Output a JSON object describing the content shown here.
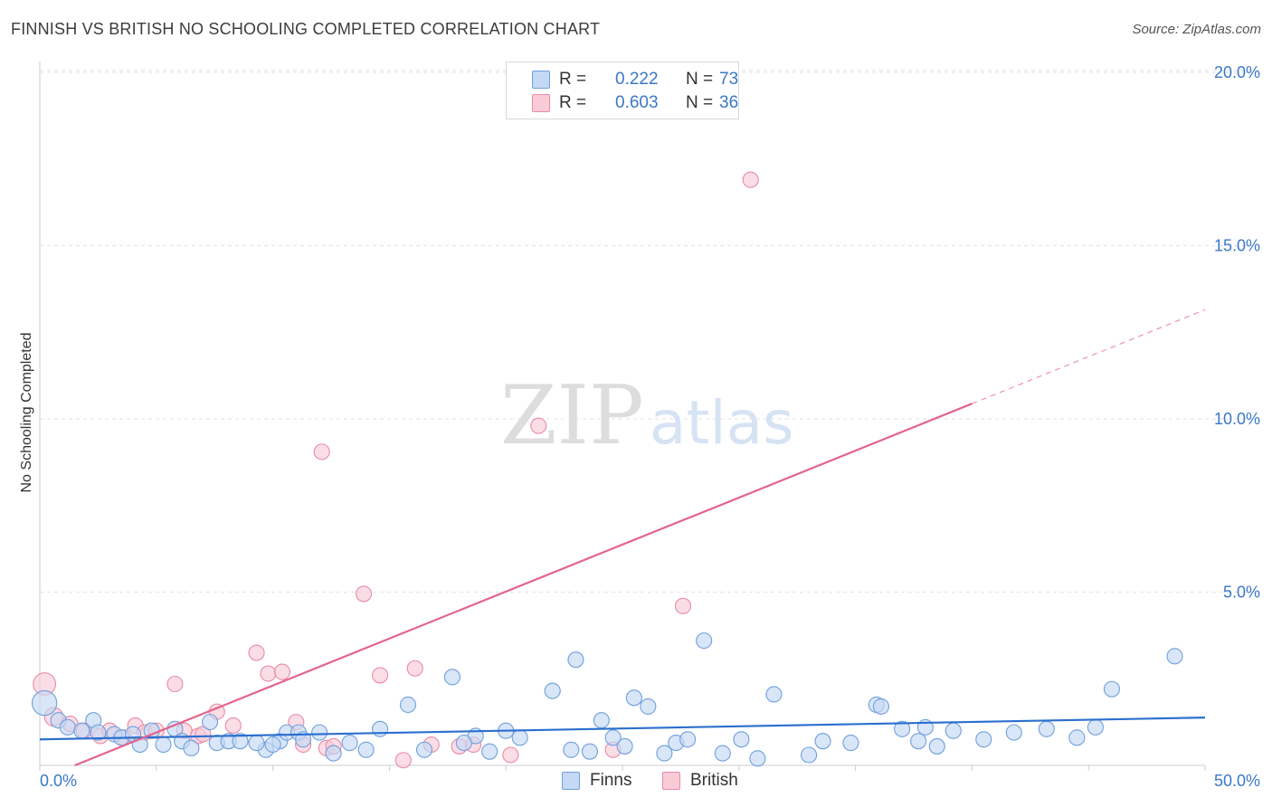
{
  "header": {
    "title": "FINNISH VS BRITISH NO SCHOOLING COMPLETED CORRELATION CHART",
    "source": "Source: ZipAtlas.com"
  },
  "watermark": {
    "part1": "ZIP",
    "part2": "atlas"
  },
  "legend": {
    "rows": [
      {
        "r_label": "R =",
        "r_value": "0.222",
        "n_label": "N =",
        "n_value": "73"
      },
      {
        "r_label": "R =",
        "r_value": "0.603",
        "n_label": "N =",
        "n_value": "36"
      }
    ]
  },
  "bottom_legend": {
    "finns": "Finns",
    "british": "British"
  },
  "colors": {
    "finns_fill": "#c5d9f5",
    "finns_stroke": "#6f9fdc",
    "finns_line": "#2b6fcf",
    "british_fill": "#f9cbd7",
    "british_stroke": "#e98aa7",
    "british_line": "#e4648e",
    "tick": "#3a78c8",
    "grid": "#e2e2e2"
  },
  "chart_data": {
    "type": "scatter",
    "title": "FINNISH VS BRITISH NO SCHOOLING COMPLETED CORRELATION CHART",
    "xlabel": "",
    "ylabel": "No Schooling Completed",
    "xlim": [
      0,
      50
    ],
    "ylim": [
      0,
      20
    ],
    "x_tick_labels": [
      "0.0%",
      "50.0%"
    ],
    "y_ticks": [
      5,
      10,
      15,
      20
    ],
    "y_tick_labels": [
      "5.0%",
      "10.0%",
      "15.0%",
      "20.0%"
    ],
    "series": [
      {
        "name": "Finns",
        "r": 0.222,
        "n": 73,
        "trend": {
          "x": [
            0,
            50
          ],
          "y": [
            0.75,
            1.38
          ],
          "dashed_from": null
        },
        "points": [
          [
            0.2,
            1.8,
            1.6
          ],
          [
            0.8,
            1.3,
            1.0
          ],
          [
            1.2,
            1.1,
            1.0
          ],
          [
            1.8,
            1.0,
            1.0
          ],
          [
            2.3,
            1.3,
            1.0
          ],
          [
            2.5,
            0.95,
            1.0
          ],
          [
            3.2,
            0.9,
            1.0
          ],
          [
            3.5,
            0.8,
            1.0
          ],
          [
            4.0,
            0.9,
            1.0
          ],
          [
            4.3,
            0.6,
            1.0
          ],
          [
            4.8,
            1.0,
            1.0
          ],
          [
            5.3,
            0.6,
            1.0
          ],
          [
            5.8,
            1.05,
            1.0
          ],
          [
            6.1,
            0.7,
            1.0
          ],
          [
            6.5,
            0.5,
            1.0
          ],
          [
            7.3,
            1.25,
            1.0
          ],
          [
            7.6,
            0.65,
            1.0
          ],
          [
            8.1,
            0.7,
            1.0
          ],
          [
            8.6,
            0.7,
            1.0
          ],
          [
            9.7,
            0.45,
            1.0
          ],
          [
            10.3,
            0.7,
            1.0
          ],
          [
            10.6,
            0.95,
            1.0
          ],
          [
            11.1,
            0.95,
            1.0
          ],
          [
            11.3,
            0.75,
            1.0
          ],
          [
            12.0,
            0.95,
            1.0
          ],
          [
            12.6,
            0.35,
            1.0
          ],
          [
            13.3,
            0.65,
            1.0
          ],
          [
            14.0,
            0.45,
            1.0
          ],
          [
            14.6,
            1.05,
            1.0
          ],
          [
            15.8,
            1.75,
            1.0
          ],
          [
            16.5,
            0.45,
            1.0
          ],
          [
            17.7,
            2.55,
            1.0
          ],
          [
            18.7,
            0.85,
            1.0
          ],
          [
            19.3,
            0.4,
            1.0
          ],
          [
            20.0,
            1.0,
            1.0
          ],
          [
            20.6,
            0.8,
            1.0
          ],
          [
            22.0,
            2.15,
            1.0
          ],
          [
            22.8,
            0.45,
            1.0
          ],
          [
            23.0,
            3.05,
            1.0
          ],
          [
            23.6,
            0.4,
            1.0
          ],
          [
            24.1,
            1.3,
            1.0
          ],
          [
            24.6,
            0.8,
            1.0
          ],
          [
            25.1,
            0.55,
            1.0
          ],
          [
            25.5,
            1.95,
            1.0
          ],
          [
            26.1,
            1.7,
            1.0
          ],
          [
            26.8,
            0.35,
            1.0
          ],
          [
            27.3,
            0.65,
            1.0
          ],
          [
            27.8,
            0.75,
            1.0
          ],
          [
            28.5,
            3.6,
            1.0
          ],
          [
            29.3,
            0.35,
            1.0
          ],
          [
            30.1,
            0.75,
            1.0
          ],
          [
            30.8,
            0.2,
            1.0
          ],
          [
            31.5,
            2.05,
            1.0
          ],
          [
            33.0,
            0.3,
            1.0
          ],
          [
            33.6,
            0.7,
            1.0
          ],
          [
            34.8,
            0.65,
            1.0
          ],
          [
            35.9,
            1.75,
            1.0
          ],
          [
            36.1,
            1.7,
            1.0
          ],
          [
            37.0,
            1.05,
            1.0
          ],
          [
            37.7,
            0.7,
            1.0
          ],
          [
            38.0,
            1.1,
            1.0
          ],
          [
            38.5,
            0.55,
            1.0
          ],
          [
            39.2,
            1.0,
            1.0
          ],
          [
            40.5,
            0.75,
            1.0
          ],
          [
            41.8,
            0.95,
            1.0
          ],
          [
            43.2,
            1.05,
            1.0
          ],
          [
            44.5,
            0.8,
            1.0
          ],
          [
            45.3,
            1.1,
            1.0
          ],
          [
            46.0,
            2.2,
            1.0
          ],
          [
            48.7,
            3.15,
            1.0
          ],
          [
            9.3,
            0.65,
            1.0
          ],
          [
            10.0,
            0.6,
            1.0
          ],
          [
            18.2,
            0.65,
            1.0
          ]
        ]
      },
      {
        "name": "British",
        "r": 0.603,
        "n": 36,
        "trend": {
          "x": [
            1.5,
            50
          ],
          "y": [
            0.0,
            13.15
          ],
          "dashed_from": 40.0
        },
        "points": [
          [
            0.2,
            2.35,
            1.45
          ],
          [
            0.6,
            1.4,
            1.2
          ],
          [
            1.3,
            1.2,
            1.0
          ],
          [
            1.9,
            1.0,
            1.0
          ],
          [
            2.6,
            0.85,
            1.0
          ],
          [
            3.0,
            1.0,
            1.0
          ],
          [
            3.6,
            0.8,
            1.0
          ],
          [
            4.1,
            1.15,
            1.0
          ],
          [
            4.5,
            0.95,
            1.0
          ],
          [
            5.0,
            1.0,
            1.0
          ],
          [
            5.8,
            2.35,
            1.0
          ],
          [
            6.2,
            1.0,
            1.0
          ],
          [
            6.8,
            0.85,
            1.0
          ],
          [
            7.0,
            0.9,
            1.0
          ],
          [
            7.6,
            1.55,
            1.0
          ],
          [
            8.3,
            1.15,
            1.0
          ],
          [
            9.3,
            3.25,
            1.0
          ],
          [
            9.8,
            2.65,
            1.0
          ],
          [
            10.4,
            2.7,
            1.0
          ],
          [
            11.0,
            1.25,
            1.0
          ],
          [
            11.3,
            0.6,
            1.0
          ],
          [
            12.1,
            9.05,
            1.0
          ],
          [
            12.3,
            0.5,
            1.0
          ],
          [
            12.6,
            0.55,
            1.0
          ],
          [
            13.9,
            4.95,
            1.0
          ],
          [
            14.6,
            2.6,
            1.0
          ],
          [
            15.6,
            0.15,
            1.0
          ],
          [
            16.1,
            2.8,
            1.0
          ],
          [
            16.8,
            0.6,
            1.0
          ],
          [
            18.0,
            0.55,
            1.0
          ],
          [
            18.6,
            0.6,
            1.0
          ],
          [
            21.4,
            9.8,
            1.0
          ],
          [
            27.6,
            4.6,
            1.0
          ],
          [
            30.5,
            16.9,
            1.0
          ],
          [
            20.2,
            0.3,
            1.0
          ],
          [
            24.6,
            0.45,
            1.0
          ]
        ]
      }
    ]
  }
}
